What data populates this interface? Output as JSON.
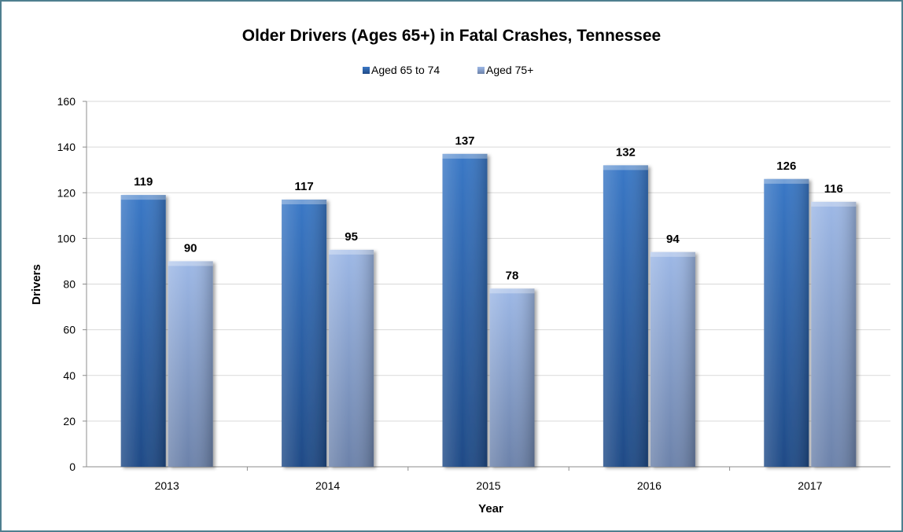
{
  "chart_data": {
    "type": "bar",
    "title": "Older Drivers (Ages 65+) in Fatal Crashes, Tennessee",
    "xlabel": "Year",
    "ylabel": "Drivers",
    "categories": [
      "2013",
      "2014",
      "2015",
      "2016",
      "2017"
    ],
    "series": [
      {
        "name": "Aged 65 to 74",
        "values": [
          119,
          117,
          137,
          132,
          126
        ],
        "color": "#2f63a8"
      },
      {
        "name": "Aged 75+",
        "values": [
          90,
          95,
          78,
          94,
          116
        ],
        "color": "#8aa8d8"
      }
    ],
    "ylim": [
      0,
      160
    ],
    "yticks": [
      0,
      20,
      40,
      60,
      80,
      100,
      120,
      140,
      160
    ],
    "grid": true,
    "legend_position": "top-center",
    "data_labels": true
  }
}
